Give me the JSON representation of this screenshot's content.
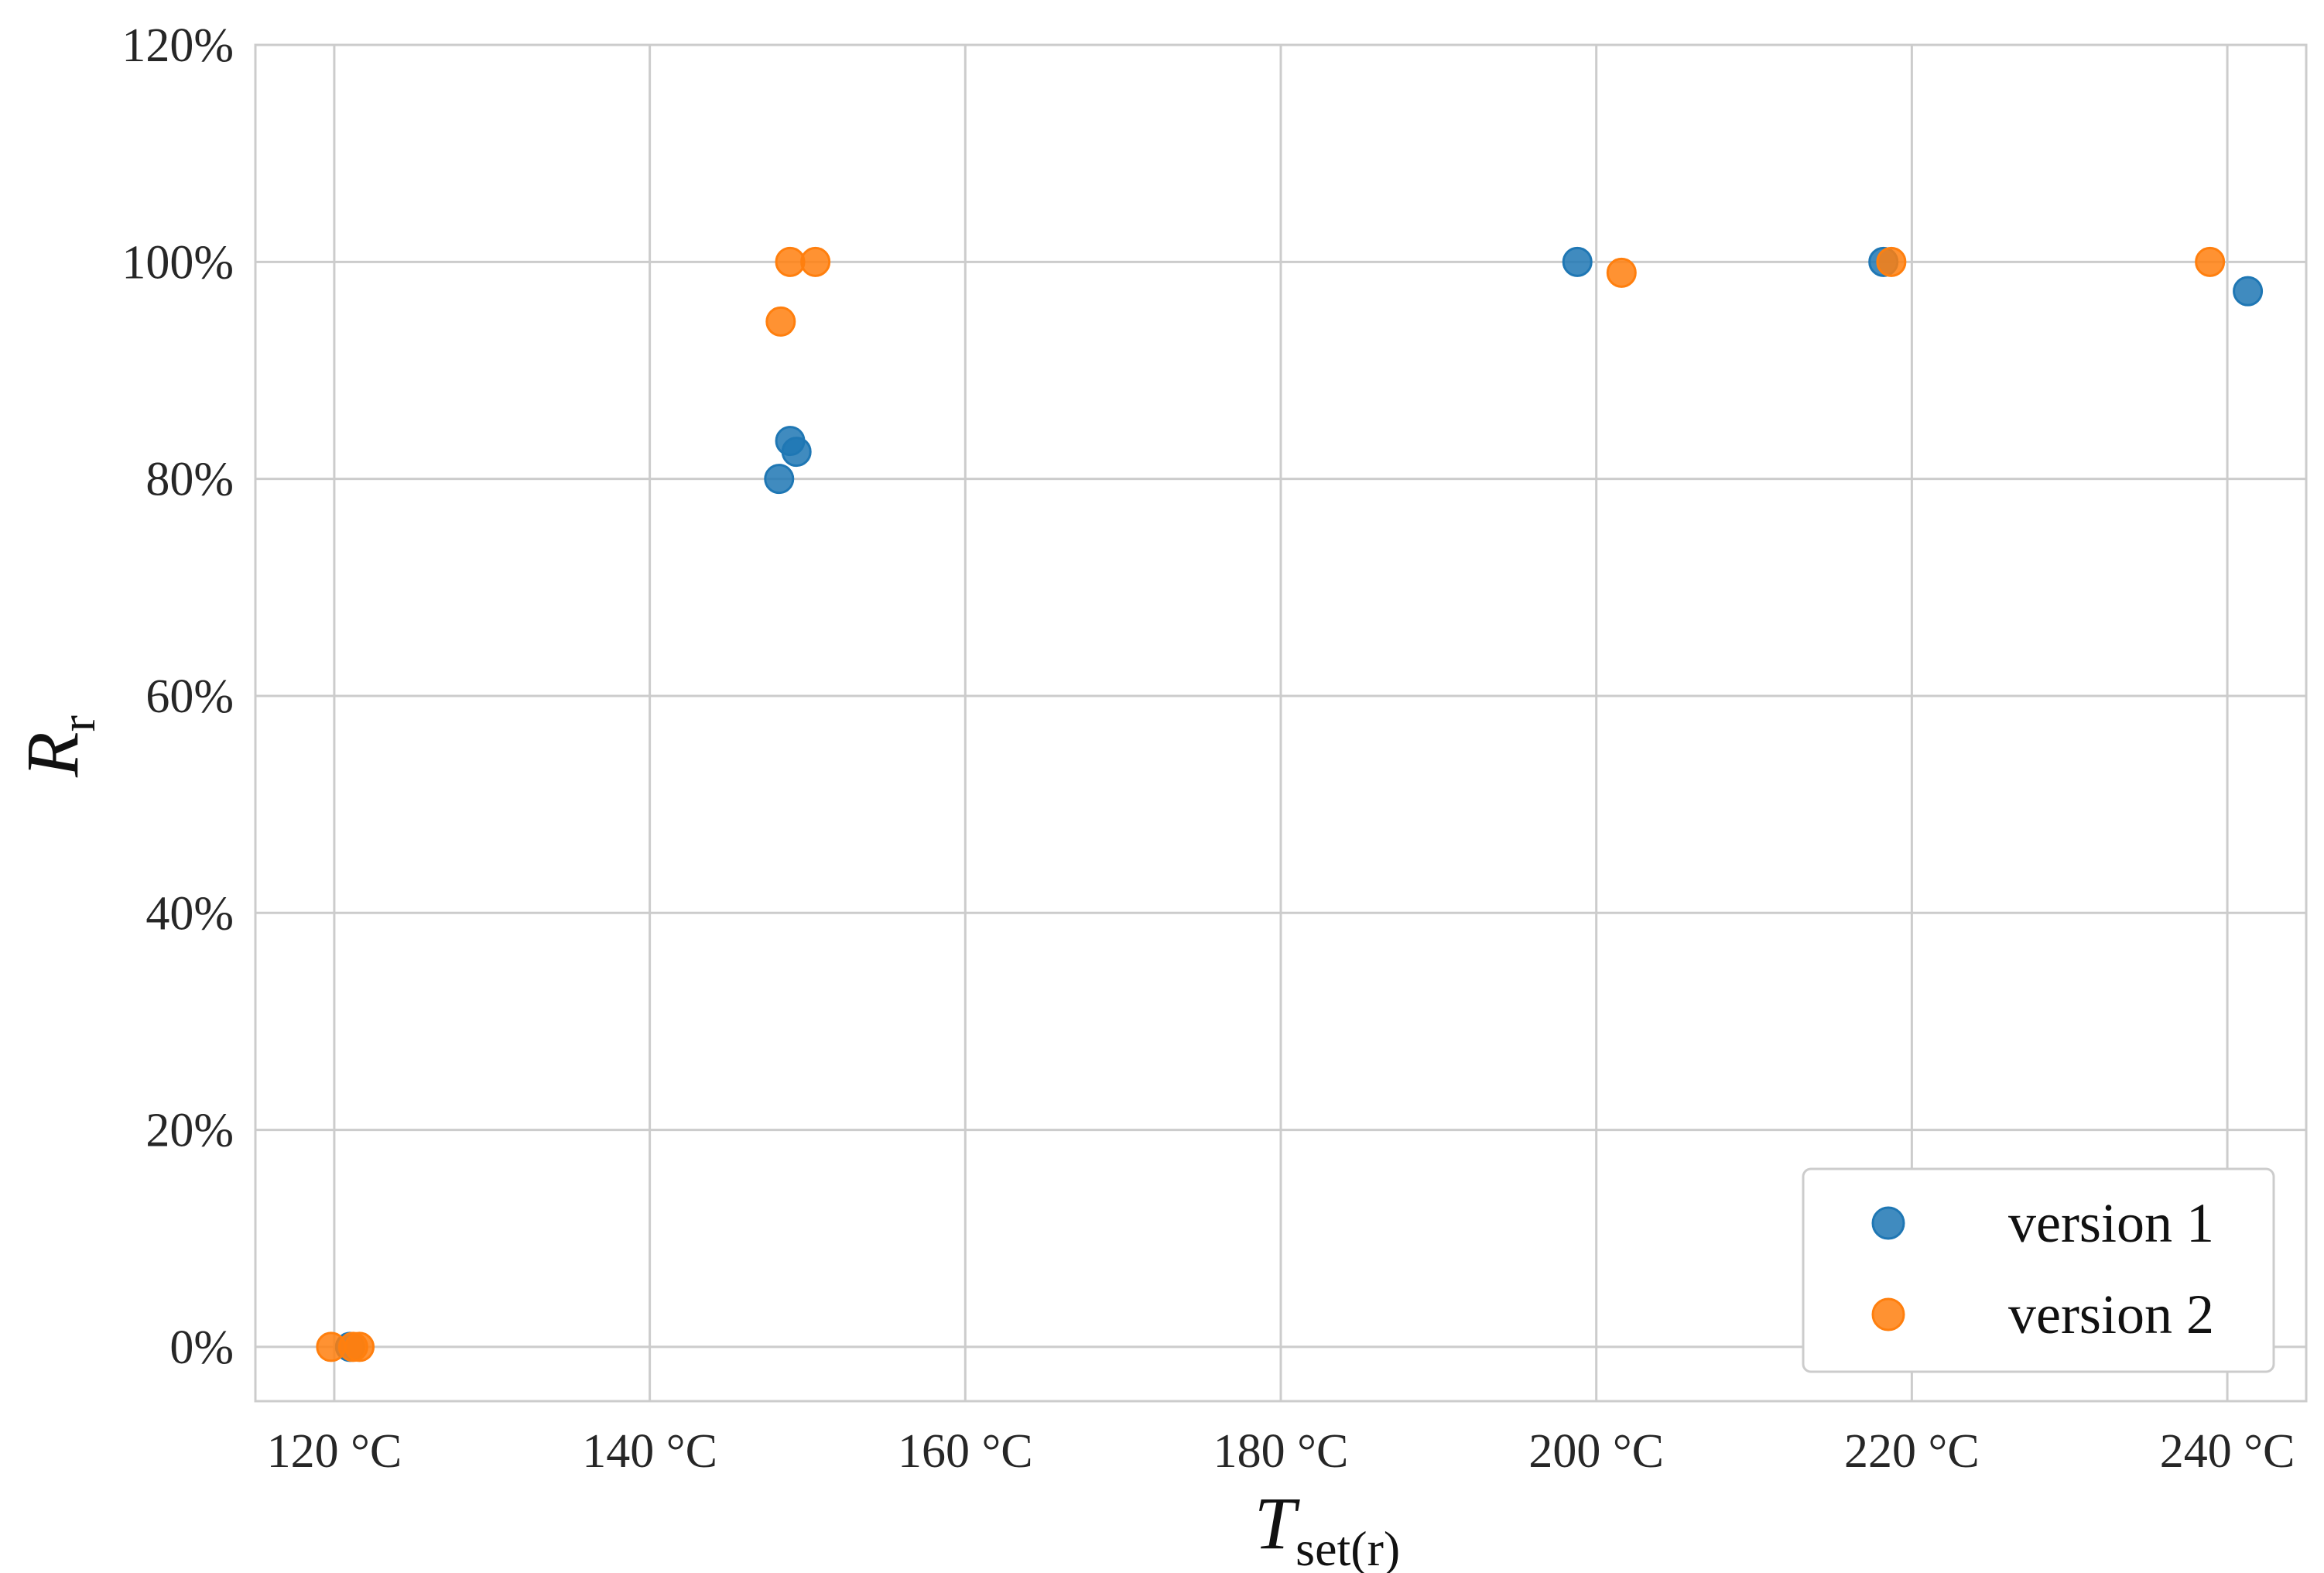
{
  "chart_data": {
    "type": "scatter",
    "xlabel": "T",
    "xlabel_subscript": "set(r)",
    "ylabel": "R",
    "ylabel_subscript": "r",
    "xlim": [
      115,
      245
    ],
    "ylim": [
      -5,
      120
    ],
    "grid": true,
    "legend_position": "bottom-right",
    "x_ticks": [
      {
        "value": 120,
        "label": "120 °C"
      },
      {
        "value": 140,
        "label": "140 °C"
      },
      {
        "value": 160,
        "label": "160 °C"
      },
      {
        "value": 180,
        "label": "180 °C"
      },
      {
        "value": 200,
        "label": "200 °C"
      },
      {
        "value": 220,
        "label": "220 °C"
      },
      {
        "value": 240,
        "label": "240 °C"
      }
    ],
    "y_ticks": [
      {
        "value": 0,
        "label": "0%"
      },
      {
        "value": 20,
        "label": "20%"
      },
      {
        "value": 40,
        "label": "40%"
      },
      {
        "value": 60,
        "label": "60%"
      },
      {
        "value": 80,
        "label": "80%"
      },
      {
        "value": 100,
        "label": "100%"
      },
      {
        "value": 120,
        "label": "120%"
      }
    ],
    "series": [
      {
        "name": "version 1",
        "color": "#1f77b4",
        "points": [
          {
            "x": 121.0,
            "y": 0
          },
          {
            "x": 148.2,
            "y": 80.0
          },
          {
            "x": 148.9,
            "y": 83.5
          },
          {
            "x": 149.3,
            "y": 82.5
          },
          {
            "x": 198.8,
            "y": 100
          },
          {
            "x": 218.2,
            "y": 100
          },
          {
            "x": 241.3,
            "y": 97.3
          }
        ]
      },
      {
        "name": "version 2",
        "color": "#ff7f0e",
        "points": [
          {
            "x": 119.8,
            "y": 0
          },
          {
            "x": 121.2,
            "y": 0
          },
          {
            "x": 121.6,
            "y": 0
          },
          {
            "x": 148.3,
            "y": 94.5
          },
          {
            "x": 148.9,
            "y": 100
          },
          {
            "x": 150.5,
            "y": 100
          },
          {
            "x": 201.6,
            "y": 99.0
          },
          {
            "x": 218.7,
            "y": 100
          },
          {
            "x": 238.9,
            "y": 100
          }
        ]
      }
    ]
  }
}
